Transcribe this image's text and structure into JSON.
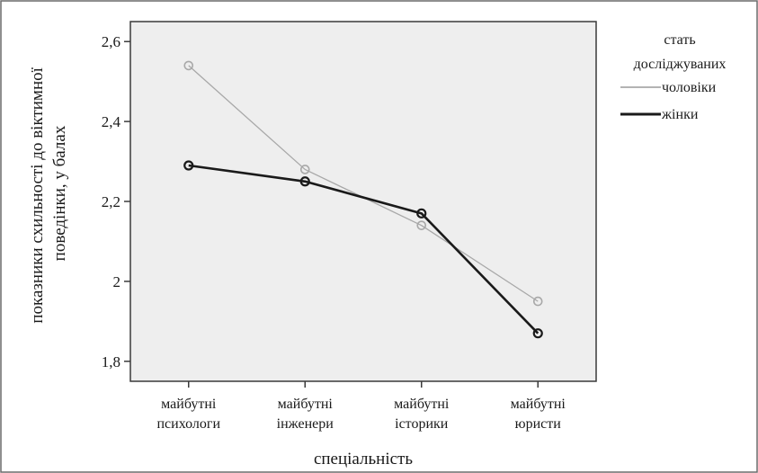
{
  "chart_data": {
    "type": "line",
    "title": "",
    "xlabel": "спеціальність",
    "ylabel": [
      "показники схильності до віктимної",
      "поведінки, у балах"
    ],
    "categories": [
      [
        "майбутні",
        "психологи"
      ],
      [
        "майбутні",
        "інженери"
      ],
      [
        "майбутні",
        "історики"
      ],
      [
        "майбутні",
        "юристи"
      ]
    ],
    "ylim": [
      1.75,
      2.65
    ],
    "yticks": [
      1.8,
      2.0,
      2.2,
      2.4,
      2.6
    ],
    "ytick_labels": [
      "1,8",
      "2",
      "2,2",
      "2,4",
      "2,6"
    ],
    "legend_title": [
      "стать",
      "досліджуваних"
    ],
    "legend_position": "right",
    "grid": false,
    "plot_background": "#eeeeee",
    "series": [
      {
        "name": "чоловіки",
        "values": [
          2.54,
          2.28,
          2.14,
          1.95
        ],
        "color": "#a8a8a8",
        "stroke_width": 1.3
      },
      {
        "name": "жінки",
        "values": [
          2.29,
          2.25,
          2.17,
          1.87
        ],
        "color": "#1a1a1a",
        "stroke_width": 2.6
      }
    ]
  }
}
